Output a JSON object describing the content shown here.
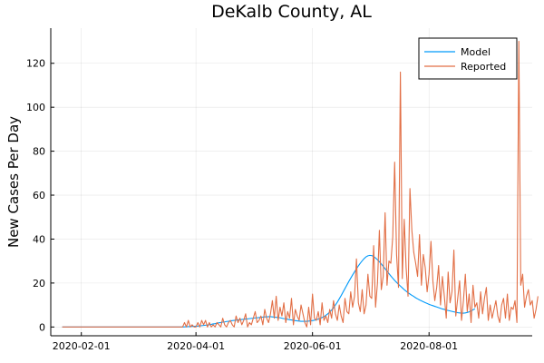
{
  "chart_data": {
    "type": "line",
    "title": "DeKalb County, AL",
    "xlabel": "",
    "ylabel": "New Cases Per Day",
    "x_start": "2020-01-22",
    "x_end": "2020-09-18",
    "xlim": [
      "2020-01-16",
      "2020-09-24"
    ],
    "ylim": [
      -4,
      136
    ],
    "x_ticks": [
      "2020-02-01",
      "2020-04-01",
      "2020-06-01",
      "2020-08-01"
    ],
    "y_ticks": [
      0,
      20,
      40,
      60,
      80,
      100,
      120
    ],
    "grid": true,
    "legend_position": "top-right",
    "series": [
      {
        "name": "Model",
        "color": "#009AFA",
        "values": [
          0,
          0,
          0,
          0,
          0,
          0,
          0,
          0,
          0,
          0,
          0,
          0,
          0,
          0,
          0,
          0,
          0,
          0,
          0,
          0,
          0,
          0,
          0,
          0,
          0,
          0,
          0,
          0,
          0,
          0,
          0,
          0,
          0,
          0,
          0,
          0,
          0,
          0,
          0,
          0,
          0,
          0,
          0,
          0,
          0,
          0,
          0,
          0,
          0,
          0,
          0,
          0,
          0,
          0,
          0,
          0,
          0,
          0,
          0,
          0,
          0,
          0,
          0,
          0,
          0.05,
          0.1,
          0.15,
          0.2,
          0.25,
          0.3,
          0.35,
          0.4,
          0.5,
          0.6,
          0.7,
          0.8,
          0.9,
          1.0,
          1.2,
          1.4,
          1.5,
          1.7,
          1.9,
          2.0,
          2.2,
          2.3,
          2.5,
          2.6,
          2.8,
          2.9,
          3.0,
          3.1,
          3.2,
          3.3,
          3.4,
          3.5,
          3.6,
          3.7,
          3.8,
          3.9,
          4.0,
          4.1,
          4.2,
          4.3,
          4.4,
          4.5,
          4.6,
          4.6,
          4.7,
          4.7,
          4.6,
          4.5,
          4.4,
          4.3,
          4.2,
          4.0,
          3.8,
          3.7,
          3.5,
          3.3,
          3.2,
          3.0,
          2.9,
          2.8,
          2.7,
          2.6,
          2.6,
          2.6,
          2.6,
          2.7,
          2.8,
          2.9,
          3.1,
          3.3,
          3.6,
          3.9,
          4.3,
          4.7,
          5.3,
          6.0,
          6.8,
          7.7,
          8.7,
          10.0,
          11.3,
          12.8,
          14.3,
          15.9,
          17.5,
          19.1,
          20.7,
          22.2,
          23.7,
          25.1,
          26.5,
          27.8,
          29.0,
          30.1,
          31.1,
          31.9,
          32.4,
          32.6,
          32.5,
          32.1,
          31.4,
          30.6,
          29.7,
          28.7,
          27.6,
          26.5,
          25.4,
          24.3,
          23.2,
          22.2,
          21.2,
          20.3,
          19.4,
          18.6,
          17.8,
          17.0,
          16.3,
          15.6,
          15.0,
          14.4,
          13.9,
          13.3,
          12.8,
          12.3,
          11.9,
          11.5,
          11.1,
          10.7,
          10.3,
          10.0,
          9.7,
          9.4,
          9.1,
          8.8,
          8.5,
          8.2,
          8.0,
          7.7,
          7.5,
          7.3,
          7.1,
          6.9,
          6.7,
          6.5,
          6.4,
          6.3,
          6.3,
          6.4,
          6.6,
          6.9,
          7.3,
          7.8,
          8.3
        ]
      },
      {
        "name": "Reported",
        "color": "#E26F46",
        "values": [
          0,
          0,
          0,
          0,
          0,
          0,
          0,
          0,
          0,
          0,
          0,
          0,
          0,
          0,
          0,
          0,
          0,
          0,
          0,
          0,
          0,
          0,
          0,
          0,
          0,
          0,
          0,
          0,
          0,
          0,
          0,
          0,
          0,
          0,
          0,
          0,
          0,
          0,
          0,
          0,
          0,
          0,
          0,
          0,
          0,
          0,
          0,
          0,
          0,
          0,
          0,
          0,
          0,
          0,
          0,
          0,
          0,
          0,
          0,
          0,
          0,
          0,
          0,
          0,
          2,
          0,
          3,
          0,
          1,
          0,
          0,
          2,
          0,
          3,
          1,
          3,
          0,
          2,
          0,
          1,
          0,
          2,
          1,
          0,
          4,
          1,
          0,
          2,
          3,
          1,
          0,
          5,
          2,
          4,
          1,
          3,
          6,
          0,
          2,
          1,
          4,
          7,
          2,
          3,
          5,
          1,
          8,
          4,
          2,
          6,
          12,
          4,
          14,
          3,
          9,
          5,
          11,
          2,
          7,
          4,
          13,
          1,
          8,
          5,
          3,
          10,
          6,
          2,
          0,
          9,
          1,
          15,
          4,
          3,
          7,
          1,
          11,
          3,
          5,
          2,
          8,
          4,
          12,
          6,
          3,
          10,
          5,
          2,
          13,
          7,
          6,
          16,
          9,
          14,
          31,
          11,
          7,
          17,
          6,
          10,
          24,
          14,
          13,
          37,
          9,
          20,
          44,
          17,
          23,
          52,
          19,
          30,
          29,
          41,
          75,
          33,
          18,
          116,
          22,
          49,
          27,
          14,
          63,
          44,
          34,
          29,
          23,
          42,
          19,
          33,
          27,
          16,
          24,
          39,
          21,
          12,
          18,
          28,
          10,
          23,
          14,
          4,
          25,
          11,
          16,
          35,
          5,
          13,
          21,
          3,
          12,
          24,
          7,
          15,
          2,
          19,
          9,
          11,
          4,
          16,
          6,
          13,
          18,
          3,
          10,
          4,
          8,
          12,
          5,
          2,
          10,
          13,
          4,
          15,
          3,
          9,
          8,
          12,
          2,
          130,
          19,
          24,
          9,
          14,
          17,
          10,
          12,
          4,
          8,
          14
        ]
      }
    ]
  }
}
